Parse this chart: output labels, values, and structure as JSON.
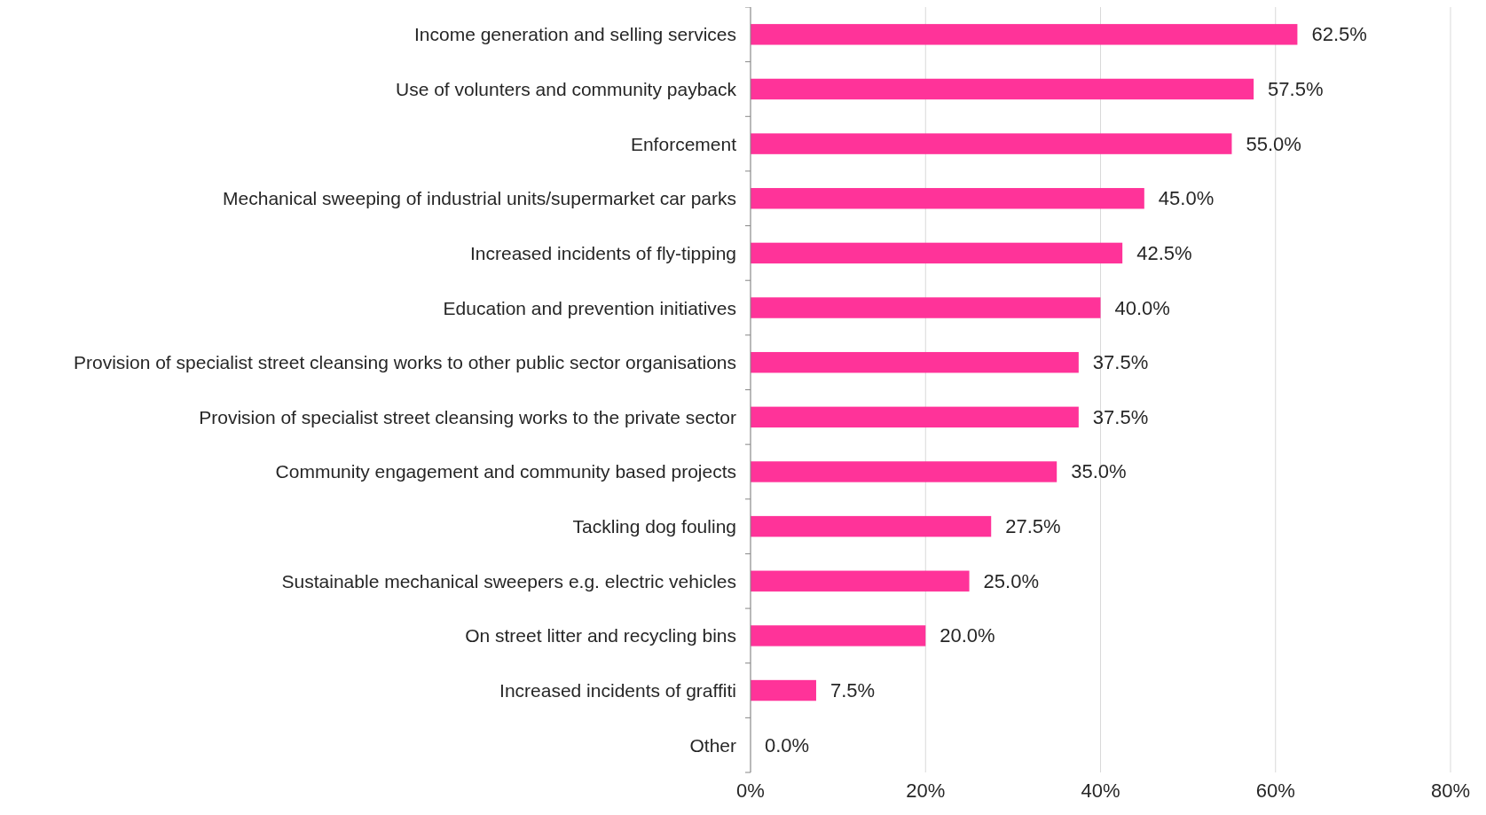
{
  "chart_data": {
    "type": "bar",
    "orientation": "horizontal",
    "categories": [
      "Income generation and selling services",
      "Use of volunters and community payback",
      "Enforcement",
      "Mechanical sweeping of industrial units/supermarket car parks",
      "Increased incidents of fly-tipping",
      "Education and prevention initiatives",
      "Provision of specialist street cleansing works to other public sector organisations",
      "Provision of specialist street cleansing works to the private sector",
      "Community engagement and community based projects",
      "Tackling dog fouling",
      "Sustainable mechanical sweepers e.g. electric vehicles",
      "On street litter and recycling bins",
      "Increased incidents of graffiti",
      "Other"
    ],
    "values": [
      62.5,
      57.5,
      55.0,
      45.0,
      42.5,
      40.0,
      37.5,
      37.5,
      35.0,
      27.5,
      25.0,
      20.0,
      7.5,
      0.0
    ],
    "value_labels": [
      "62.5%",
      "57.5%",
      "55.0%",
      "45.0%",
      "42.5%",
      "40.0%",
      "37.5%",
      "37.5%",
      "35.0%",
      "27.5%",
      "25.0%",
      "20.0%",
      "7.5%",
      "0.0%"
    ],
    "color": "#ff3399",
    "xlim": [
      0,
      80
    ],
    "xticks": [
      {
        "value": 0,
        "label": "0%"
      },
      {
        "value": 20,
        "label": "20%"
      },
      {
        "value": 40,
        "label": "40%"
      },
      {
        "value": 60,
        "label": "60%"
      },
      {
        "value": 80,
        "label": "80%"
      }
    ],
    "grid": "x"
  }
}
